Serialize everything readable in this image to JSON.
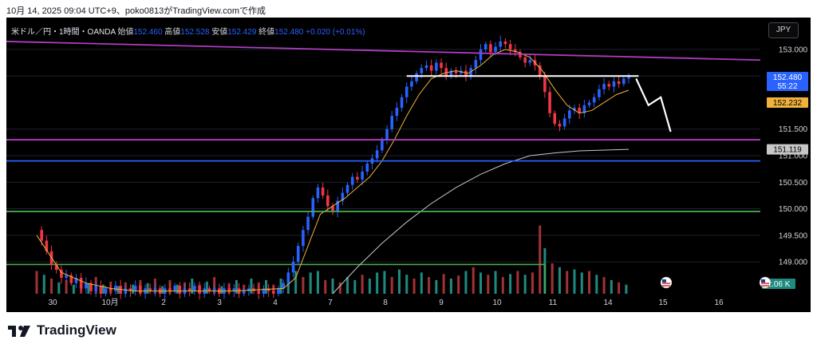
{
  "header": {
    "caption": "10月 14, 2025 09:04 UTC+9、poko0813がTradingView.comで作成"
  },
  "legend": {
    "symbol": "米ドル／円・1時間・OANDA",
    "open_label": "始値",
    "open": "152.460",
    "high_label": "高値",
    "high": "152.528",
    "low_label": "安値",
    "low": "152.429",
    "close_label": "終値",
    "close": "152.480",
    "change": "+0.020 (+0.01%)"
  },
  "currency": "JPY",
  "footer": {
    "logo_text": "TradingView"
  },
  "colors": {
    "background": "#000000",
    "up": "#2962ff",
    "down": "#f23645",
    "vol_up": "#1f8a7f",
    "vol_down": "#a33232",
    "ma_short": "#f0b23a",
    "ma_long": "#c7c7c7",
    "purple_line": "#b03cbf",
    "blue_line": "#2962ff",
    "green_line": "#4caf50",
    "white_line": "#ffffff"
  },
  "chart_data": {
    "type": "candlestick",
    "y_range": [
      148.4,
      153.6
    ],
    "y_ticks": [
      "153.000",
      "152.500",
      "151.500",
      "151.000",
      "150.500",
      "150.000",
      "149.500",
      "149.000"
    ],
    "x_labels": [
      "30",
      "10月",
      "2",
      "3",
      "4",
      "7",
      "8",
      "9",
      "10",
      "11",
      "14",
      "15",
      "16"
    ],
    "price_badges": [
      {
        "label": "152.480",
        "sub": "55:22",
        "value": 152.48,
        "style": "current"
      },
      {
        "label": "152.232",
        "value": 152.232,
        "style": "ma"
      },
      {
        "label": "151.119",
        "value": 151.119,
        "style": "grey"
      }
    ],
    "volume_badge": "2.06 K",
    "price_path": [
      [
        0,
        149.6
      ],
      [
        2,
        149.4
      ],
      [
        4,
        149.2
      ],
      [
        6,
        148.95
      ],
      [
        8,
        148.85
      ],
      [
        10,
        148.7
      ],
      [
        12,
        148.75
      ],
      [
        14,
        148.6
      ],
      [
        16,
        148.7
      ],
      [
        18,
        148.5
      ],
      [
        20,
        148.6
      ],
      [
        22,
        148.45
      ],
      [
        24,
        148.55
      ],
      [
        26,
        148.4
      ],
      [
        28,
        148.5
      ],
      [
        30,
        148.45
      ],
      [
        32,
        148.55
      ],
      [
        34,
        148.4
      ],
      [
        36,
        148.5
      ],
      [
        38,
        148.45
      ],
      [
        40,
        148.55
      ],
      [
        42,
        148.4
      ],
      [
        44,
        148.5
      ],
      [
        46,
        148.45
      ],
      [
        48,
        148.5
      ],
      [
        50,
        148.4
      ],
      [
        52,
        148.5
      ],
      [
        54,
        148.45
      ],
      [
        56,
        148.55
      ],
      [
        58,
        148.4
      ],
      [
        60,
        148.5
      ],
      [
        62,
        148.45
      ],
      [
        64,
        148.55
      ],
      [
        66,
        148.4
      ],
      [
        68,
        148.5
      ],
      [
        70,
        148.45
      ],
      [
        72,
        148.5
      ],
      [
        74,
        148.4
      ],
      [
        76,
        148.5
      ],
      [
        78,
        148.45
      ],
      [
        80,
        148.5
      ],
      [
        82,
        148.4
      ],
      [
        84,
        148.45
      ],
      [
        86,
        148.5
      ],
      [
        88,
        148.45
      ],
      [
        90,
        148.4
      ],
      [
        92,
        148.5
      ],
      [
        94,
        148.45
      ],
      [
        96,
        148.4
      ],
      [
        98,
        148.5
      ],
      [
        100,
        148.6
      ],
      [
        102,
        148.8
      ],
      [
        104,
        149.0
      ],
      [
        106,
        149.3
      ],
      [
        108,
        149.6
      ],
      [
        110,
        149.85
      ],
      [
        112,
        150.2
      ],
      [
        114,
        150.4
      ],
      [
        116,
        150.25
      ],
      [
        118,
        150.05
      ],
      [
        120,
        149.95
      ],
      [
        122,
        150.15
      ],
      [
        124,
        150.3
      ],
      [
        126,
        150.45
      ],
      [
        128,
        150.6
      ],
      [
        130,
        150.55
      ],
      [
        132,
        150.7
      ],
      [
        134,
        150.85
      ],
      [
        136,
        150.95
      ],
      [
        138,
        151.1
      ],
      [
        140,
        151.3
      ],
      [
        142,
        151.5
      ],
      [
        144,
        151.75
      ],
      [
        146,
        151.9
      ],
      [
        148,
        152.1
      ],
      [
        150,
        152.3
      ],
      [
        152,
        152.4
      ],
      [
        154,
        152.55
      ],
      [
        156,
        152.65
      ],
      [
        158,
        152.7
      ],
      [
        160,
        152.6
      ],
      [
        162,
        152.75
      ],
      [
        164,
        152.65
      ],
      [
        166,
        152.5
      ],
      [
        168,
        152.6
      ],
      [
        170,
        152.55
      ],
      [
        172,
        152.6
      ],
      [
        174,
        152.5
      ],
      [
        176,
        152.65
      ],
      [
        178,
        152.8
      ],
      [
        180,
        153.0
      ],
      [
        182,
        153.1
      ],
      [
        184,
        152.95
      ],
      [
        186,
        153.05
      ],
      [
        188,
        153.15
      ],
      [
        190,
        153.1
      ],
      [
        192,
        153.0
      ],
      [
        194,
        152.95
      ],
      [
        196,
        152.85
      ],
      [
        198,
        152.75
      ],
      [
        200,
        152.8
      ],
      [
        202,
        152.7
      ],
      [
        204,
        152.5
      ],
      [
        206,
        152.2
      ],
      [
        208,
        151.8
      ],
      [
        210,
        151.6
      ],
      [
        212,
        151.55
      ],
      [
        214,
        151.7
      ],
      [
        216,
        151.85
      ],
      [
        218,
        151.9
      ],
      [
        220,
        151.8
      ],
      [
        222,
        151.95
      ],
      [
        224,
        152.0
      ],
      [
        226,
        152.1
      ],
      [
        228,
        152.25
      ],
      [
        230,
        152.35
      ],
      [
        232,
        152.3
      ],
      [
        234,
        152.4
      ],
      [
        236,
        152.35
      ],
      [
        238,
        152.45
      ],
      [
        240,
        152.48
      ]
    ],
    "ma_short": [
      [
        0,
        149.5
      ],
      [
        10,
        148.8
      ],
      [
        20,
        148.6
      ],
      [
        30,
        148.5
      ],
      [
        40,
        148.45
      ],
      [
        60,
        148.45
      ],
      [
        80,
        148.45
      ],
      [
        100,
        148.5
      ],
      [
        105,
        148.7
      ],
      [
        110,
        149.3
      ],
      [
        115,
        149.9
      ],
      [
        120,
        150.05
      ],
      [
        125,
        150.2
      ],
      [
        130,
        150.4
      ],
      [
        135,
        150.6
      ],
      [
        140,
        150.9
      ],
      [
        145,
        151.3
      ],
      [
        150,
        151.75
      ],
      [
        155,
        152.15
      ],
      [
        160,
        152.45
      ],
      [
        165,
        152.55
      ],
      [
        170,
        152.6
      ],
      [
        175,
        152.55
      ],
      [
        180,
        152.7
      ],
      [
        185,
        152.9
      ],
      [
        190,
        153.0
      ],
      [
        195,
        152.95
      ],
      [
        200,
        152.85
      ],
      [
        205,
        152.6
      ],
      [
        210,
        152.25
      ],
      [
        215,
        151.95
      ],
      [
        220,
        151.8
      ],
      [
        225,
        151.85
      ],
      [
        230,
        152.0
      ],
      [
        235,
        152.15
      ],
      [
        240,
        152.232
      ]
    ],
    "ma_long": [
      [
        120,
        148.4
      ],
      [
        130,
        148.9
      ],
      [
        140,
        149.35
      ],
      [
        150,
        149.75
      ],
      [
        160,
        150.1
      ],
      [
        170,
        150.4
      ],
      [
        180,
        150.65
      ],
      [
        190,
        150.85
      ],
      [
        200,
        151.0
      ],
      [
        210,
        151.05
      ],
      [
        220,
        151.09
      ],
      [
        240,
        151.119
      ]
    ],
    "volume": [
      [
        0,
        0.3,
        "d"
      ],
      [
        3,
        0.25,
        "u"
      ],
      [
        6,
        0.2,
        "d"
      ],
      [
        9,
        0.15,
        "u"
      ],
      [
        12,
        0.18,
        "d"
      ],
      [
        15,
        0.12,
        "u"
      ],
      [
        18,
        0.2,
        "d"
      ],
      [
        21,
        0.14,
        "u"
      ],
      [
        24,
        0.22,
        "d"
      ],
      [
        27,
        0.12,
        "u"
      ],
      [
        30,
        0.16,
        "d"
      ],
      [
        33,
        0.1,
        "u"
      ],
      [
        36,
        0.15,
        "d"
      ],
      [
        39,
        0.12,
        "u"
      ],
      [
        42,
        0.18,
        "d"
      ],
      [
        45,
        0.14,
        "u"
      ],
      [
        48,
        0.2,
        "d"
      ],
      [
        51,
        0.1,
        "u"
      ],
      [
        54,
        0.18,
        "d"
      ],
      [
        57,
        0.12,
        "u"
      ],
      [
        60,
        0.15,
        "d"
      ],
      [
        63,
        0.2,
        "u"
      ],
      [
        66,
        0.12,
        "d"
      ],
      [
        69,
        0.16,
        "u"
      ],
      [
        72,
        0.22,
        "d"
      ],
      [
        75,
        0.1,
        "u"
      ],
      [
        78,
        0.14,
        "d"
      ],
      [
        81,
        0.18,
        "u"
      ],
      [
        84,
        0.12,
        "d"
      ],
      [
        87,
        0.2,
        "u"
      ],
      [
        90,
        0.15,
        "d"
      ],
      [
        93,
        0.18,
        "u"
      ],
      [
        96,
        0.12,
        "d"
      ],
      [
        99,
        0.2,
        "u"
      ],
      [
        102,
        0.25,
        "u"
      ],
      [
        105,
        0.3,
        "u"
      ],
      [
        108,
        0.22,
        "d"
      ],
      [
        111,
        0.28,
        "u"
      ],
      [
        114,
        0.3,
        "u"
      ],
      [
        117,
        0.18,
        "d"
      ],
      [
        120,
        0.2,
        "u"
      ],
      [
        123,
        0.15,
        "d"
      ],
      [
        126,
        0.22,
        "u"
      ],
      [
        129,
        0.18,
        "u"
      ],
      [
        132,
        0.25,
        "d"
      ],
      [
        135,
        0.2,
        "u"
      ],
      [
        138,
        0.28,
        "u"
      ],
      [
        141,
        0.3,
        "u"
      ],
      [
        144,
        0.22,
        "d"
      ],
      [
        147,
        0.32,
        "u"
      ],
      [
        150,
        0.25,
        "u"
      ],
      [
        153,
        0.2,
        "d"
      ],
      [
        156,
        0.28,
        "u"
      ],
      [
        159,
        0.22,
        "d"
      ],
      [
        162,
        0.18,
        "u"
      ],
      [
        165,
        0.26,
        "d"
      ],
      [
        168,
        0.2,
        "u"
      ],
      [
        171,
        0.24,
        "d"
      ],
      [
        174,
        0.3,
        "u"
      ],
      [
        177,
        0.35,
        "d"
      ],
      [
        180,
        0.28,
        "u"
      ],
      [
        183,
        0.25,
        "d"
      ],
      [
        186,
        0.3,
        "u"
      ],
      [
        189,
        0.22,
        "d"
      ],
      [
        192,
        0.26,
        "u"
      ],
      [
        195,
        0.3,
        "d"
      ],
      [
        198,
        0.25,
        "u"
      ],
      [
        201,
        0.28,
        "d"
      ],
      [
        204,
        0.9,
        "d"
      ],
      [
        206,
        0.6,
        "u"
      ],
      [
        209,
        0.4,
        "d"
      ],
      [
        212,
        0.35,
        "u"
      ],
      [
        215,
        0.3,
        "d"
      ],
      [
        218,
        0.32,
        "u"
      ],
      [
        221,
        0.28,
        "u"
      ],
      [
        224,
        0.3,
        "d"
      ],
      [
        227,
        0.25,
        "u"
      ],
      [
        230,
        0.22,
        "d"
      ],
      [
        233,
        0.18,
        "u"
      ],
      [
        236,
        0.15,
        "d"
      ],
      [
        239,
        0.12,
        "u"
      ]
    ]
  }
}
